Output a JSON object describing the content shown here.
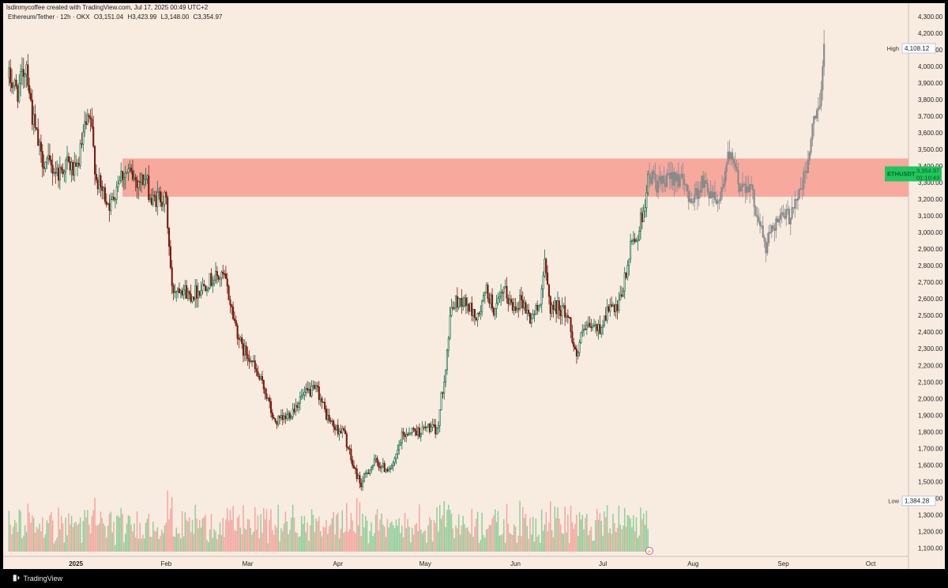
{
  "header": {
    "created_line": "lsdinmycoffee created with TradingView.com, Jul 17, 2025 00:49 UTC+2",
    "symbol_line": "Ethereum/Tether · 12h · OKX",
    "ohlc": {
      "open": "O3,151.04",
      "high": "H3,423.99",
      "low": "L3,148.00",
      "close": "C3,354.97"
    }
  },
  "footer": {
    "brand": "TradingView",
    "logo_icon": "tradingview-logo-icon"
  },
  "colors": {
    "background": "#f8ece1",
    "up_candle": "#0a6b47",
    "down_candle": "#7a1a10",
    "projection_candle": "#8a8a8a",
    "zone_fill": "#f7a99e",
    "volume_up": "#7ec98d",
    "volume_down": "#f29a93",
    "price_tag": "#22c55e"
  },
  "price_axis": {
    "ticks": [
      "4,300.00",
      "4,200.00",
      "4,100.00",
      "4,000.00",
      "3,900.00",
      "3,800.00",
      "3,700.00",
      "3,600.00",
      "3,500.00",
      "3,400.00",
      "3,300.00",
      "3,200.00",
      "3,100.00",
      "3,000.00",
      "2,900.00",
      "2,800.00",
      "2,700.00",
      "2,600.00",
      "2,500.00",
      "2,400.00",
      "2,300.00",
      "2,200.00",
      "2,100.00",
      "2,000.00",
      "1,900.00",
      "1,800.00",
      "1,700.00",
      "1,600.00",
      "1,500.00",
      "1,400.00",
      "1,300.00",
      "1,200.00",
      "1,100.00"
    ],
    "high_label": "High",
    "high_value": "4,108.12",
    "low_label": "Low",
    "low_value": "1,384.28",
    "last_symbol": "ETHUSDT",
    "last_price": "3,354.97",
    "countdown": "01:10:43"
  },
  "time_axis": {
    "labels": [
      "2025",
      "Feb",
      "Mar",
      "Apr",
      "May",
      "Jun",
      "Jul",
      "Aug",
      "Sep",
      "Oct"
    ]
  },
  "chart_data": {
    "type": "candlestick",
    "symbol": "ETHUSDT",
    "interval": "12h",
    "exchange": "OKX",
    "ylim": [
      1050,
      4380
    ],
    "resistance_zone": [
      3215,
      3445
    ],
    "high_marker": 4108.12,
    "low_marker": 1384.28,
    "last_price": 3354.97,
    "projection_start_date": "2025-07-17",
    "close_series": [
      [
        "2024-12-09",
        3930
      ],
      [
        "2024-12-12",
        3850
      ],
      [
        "2024-12-15",
        4020
      ],
      [
        "2024-12-17",
        3700
      ],
      [
        "2024-12-20",
        3450
      ],
      [
        "2024-12-23",
        3400
      ],
      [
        "2024-12-26",
        3360
      ],
      [
        "2024-12-29",
        3420
      ],
      [
        "2025-01-01",
        3350
      ],
      [
        "2025-01-04",
        3620
      ],
      [
        "2025-01-06",
        3680
      ],
      [
        "2025-01-08",
        3320
      ],
      [
        "2025-01-10",
        3250
      ],
      [
        "2025-01-13",
        3160
      ],
      [
        "2025-01-16",
        3350
      ],
      [
        "2025-01-19",
        3360
      ],
      [
        "2025-01-22",
        3310
      ],
      [
        "2025-01-25",
        3320
      ],
      [
        "2025-01-27",
        3180
      ],
      [
        "2025-01-30",
        3220
      ],
      [
        "2025-02-01",
        3180
      ],
      [
        "2025-02-03",
        2650
      ],
      [
        "2025-02-06",
        2680
      ],
      [
        "2025-02-09",
        2620
      ],
      [
        "2025-02-12",
        2650
      ],
      [
        "2025-02-15",
        2700
      ],
      [
        "2025-02-18",
        2730
      ],
      [
        "2025-02-21",
        2730
      ],
      [
        "2025-02-24",
        2500
      ],
      [
        "2025-02-27",
        2300
      ],
      [
        "2025-03-02",
        2250
      ],
      [
        "2025-03-04",
        2150
      ],
      [
        "2025-03-07",
        2050
      ],
      [
        "2025-03-10",
        1860
      ],
      [
        "2025-03-13",
        1870
      ],
      [
        "2025-03-16",
        1920
      ],
      [
        "2025-03-19",
        2000
      ],
      [
        "2025-03-22",
        2040
      ],
      [
        "2025-03-25",
        2050
      ],
      [
        "2025-03-28",
        1900
      ],
      [
        "2025-03-31",
        1820
      ],
      [
        "2025-04-03",
        1800
      ],
      [
        "2025-04-06",
        1600
      ],
      [
        "2025-04-09",
        1480
      ],
      [
        "2025-04-11",
        1560
      ],
      [
        "2025-04-14",
        1620
      ],
      [
        "2025-04-17",
        1580
      ],
      [
        "2025-04-20",
        1590
      ],
      [
        "2025-04-23",
        1770
      ],
      [
        "2025-04-26",
        1810
      ],
      [
        "2025-04-29",
        1800
      ],
      [
        "2025-05-02",
        1830
      ],
      [
        "2025-05-05",
        1800
      ],
      [
        "2025-05-08",
        2200
      ],
      [
        "2025-05-10",
        2550
      ],
      [
        "2025-05-13",
        2600
      ],
      [
        "2025-05-16",
        2550
      ],
      [
        "2025-05-19",
        2480
      ],
      [
        "2025-05-22",
        2650
      ],
      [
        "2025-05-25",
        2520
      ],
      [
        "2025-05-28",
        2650
      ],
      [
        "2025-05-31",
        2550
      ],
      [
        "2025-06-03",
        2600
      ],
      [
        "2025-06-06",
        2480
      ],
      [
        "2025-06-09",
        2550
      ],
      [
        "2025-06-11",
        2800
      ],
      [
        "2025-06-13",
        2550
      ],
      [
        "2025-06-16",
        2550
      ],
      [
        "2025-06-19",
        2500
      ],
      [
        "2025-06-22",
        2250
      ],
      [
        "2025-06-24",
        2400
      ],
      [
        "2025-06-27",
        2430
      ],
      [
        "2025-06-30",
        2420
      ],
      [
        "2025-07-03",
        2550
      ],
      [
        "2025-07-06",
        2520
      ],
      [
        "2025-07-09",
        2750
      ],
      [
        "2025-07-11",
        2950
      ],
      [
        "2025-07-13",
        2980
      ],
      [
        "2025-07-15",
        3150
      ],
      [
        "2025-07-17",
        3350
      ],
      [
        "2025-07-20",
        3280
      ],
      [
        "2025-07-23",
        3300
      ],
      [
        "2025-07-26",
        3360
      ],
      [
        "2025-07-29",
        3270
      ],
      [
        "2025-08-01",
        3200
      ],
      [
        "2025-08-04",
        3300
      ],
      [
        "2025-08-07",
        3250
      ],
      [
        "2025-08-10",
        3200
      ],
      [
        "2025-08-13",
        3450
      ],
      [
        "2025-08-15",
        3400
      ],
      [
        "2025-08-17",
        3280
      ],
      [
        "2025-08-20",
        3300
      ],
      [
        "2025-08-23",
        3120
      ],
      [
        "2025-08-26",
        2900
      ],
      [
        "2025-08-28",
        3050
      ],
      [
        "2025-08-31",
        3080
      ],
      [
        "2025-09-03",
        3100
      ],
      [
        "2025-09-05",
        3200
      ],
      [
        "2025-09-07",
        3250
      ],
      [
        "2025-09-09",
        3380
      ],
      [
        "2025-09-11",
        3620
      ],
      [
        "2025-09-12",
        3680
      ],
      [
        "2025-09-13",
        3750
      ],
      [
        "2025-09-14",
        3900
      ],
      [
        "2025-09-15",
        4108
      ]
    ]
  }
}
